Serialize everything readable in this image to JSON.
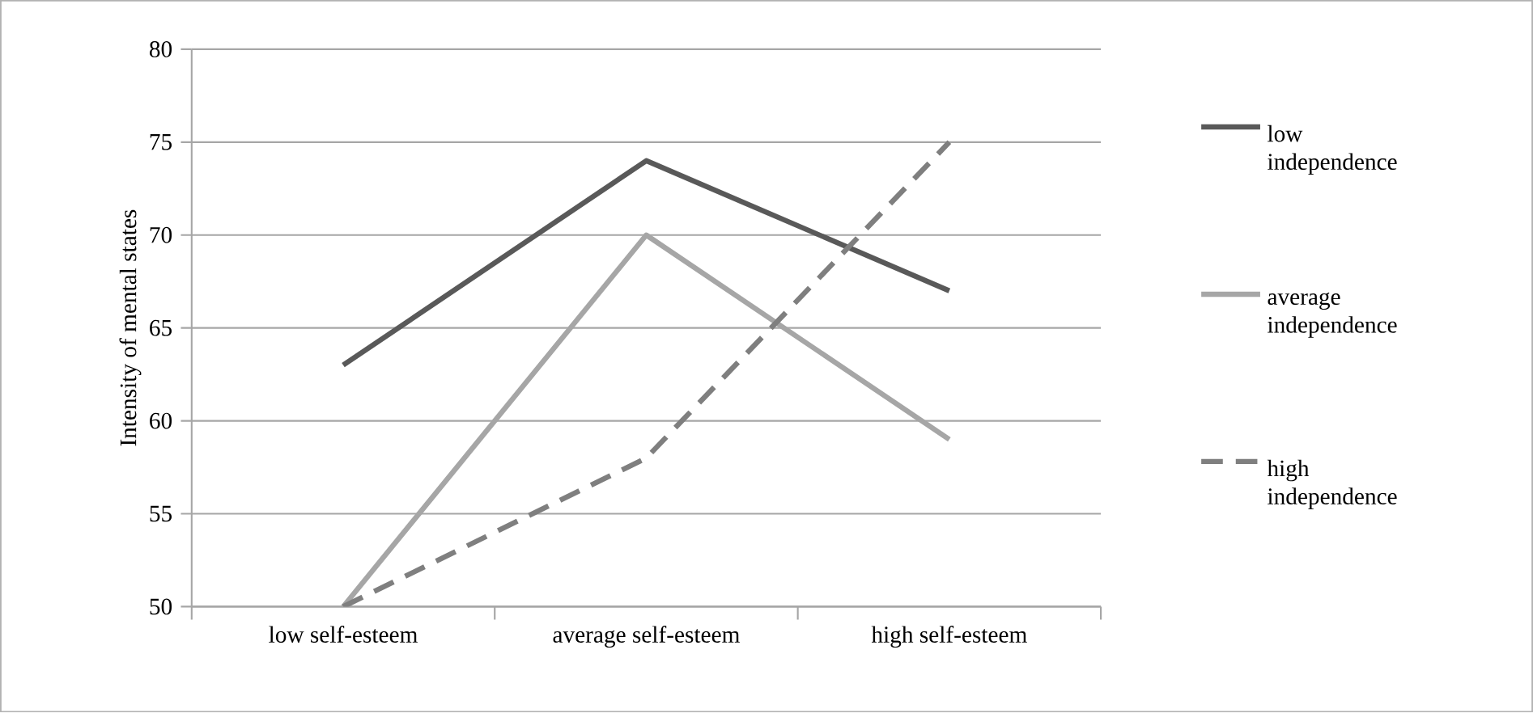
{
  "chart_data": {
    "type": "line",
    "ylabel": "Intensity of mental states",
    "categories": [
      "low self-esteem",
      "average self-esteem",
      "high self-esteem"
    ],
    "series": [
      {
        "name": "low independence",
        "color": "#595959",
        "values": [
          63,
          74,
          67
        ],
        "line_style": "solid"
      },
      {
        "name": "average independence",
        "color": "#a6a6a6",
        "values": [
          50,
          70,
          59
        ],
        "line_style": "solid"
      },
      {
        "name": "high independence",
        "color": "#7f7f7f",
        "values": [
          50,
          58,
          75
        ],
        "line_style": "dashed"
      }
    ],
    "ylim": [
      50,
      80
    ],
    "yticks": [
      50,
      55,
      60,
      65,
      70,
      75,
      80
    ],
    "grid": "y",
    "legend": "right",
    "marker": "none"
  }
}
